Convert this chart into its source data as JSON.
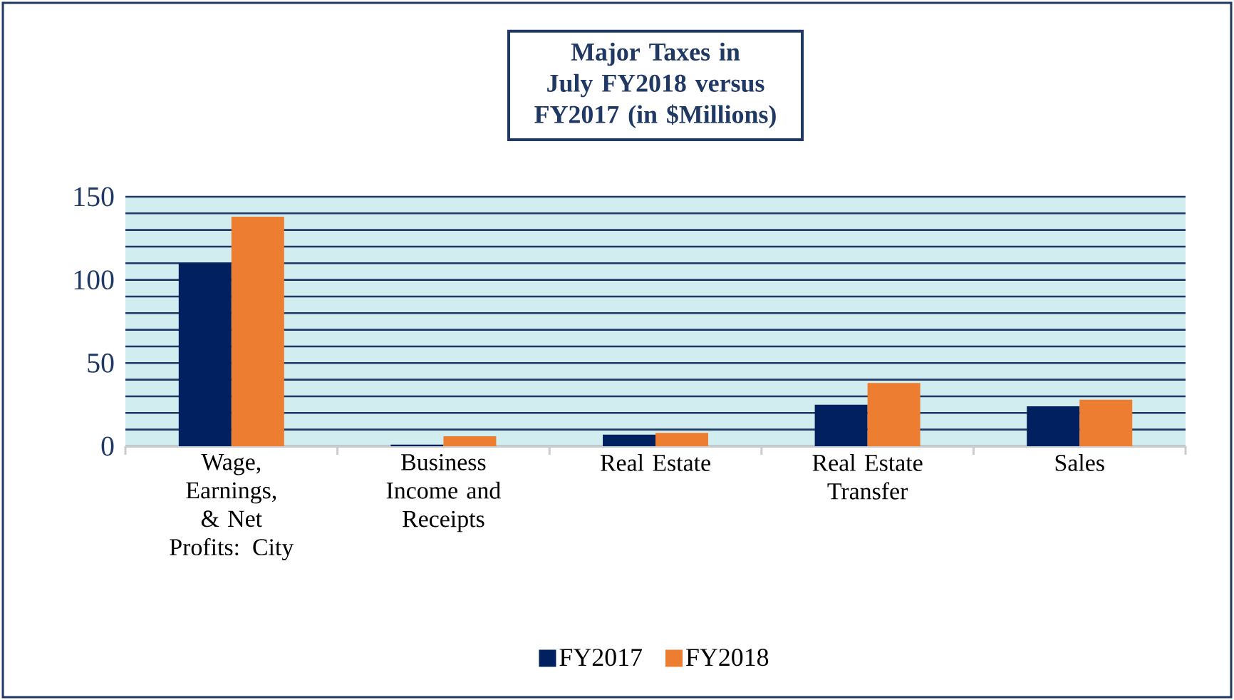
{
  "chart_data": {
    "type": "bar",
    "title": "Major Taxes in July FY2018 versus FY2017 (in $Millions)",
    "categories": [
      "Wage, Earnings, & Net Profits: City",
      "Business Income and Receipts",
      "Real Estate",
      "Real Estate Transfer",
      "Sales"
    ],
    "series": [
      {
        "name": "FY2017",
        "color": "#002060",
        "values": [
          110,
          1,
          7,
          25,
          24
        ]
      },
      {
        "name": "FY2018",
        "color": "#ed7d31",
        "values": [
          138,
          6,
          8,
          38,
          28
        ]
      }
    ],
    "ylim": [
      0,
      150
    ],
    "yticks": [
      0,
      {
        "value": 10,
        "label": null
      },
      {
        "value": 20,
        "label": null
      },
      {
        "value": 30,
        "label": null
      },
      {
        "value": 40,
        "label": null
      },
      50,
      {
        "value": 60,
        "label": null
      },
      {
        "value": 70,
        "label": null
      },
      {
        "value": 80,
        "label": null
      },
      {
        "value": 90,
        "label": null
      },
      100,
      {
        "value": 110,
        "label": null
      },
      {
        "value": 120,
        "label": null
      },
      {
        "value": 130,
        "label": null
      },
      {
        "value": 140,
        "label": null
      },
      150
    ],
    "grid": "y",
    "legend": "bottom"
  }
}
